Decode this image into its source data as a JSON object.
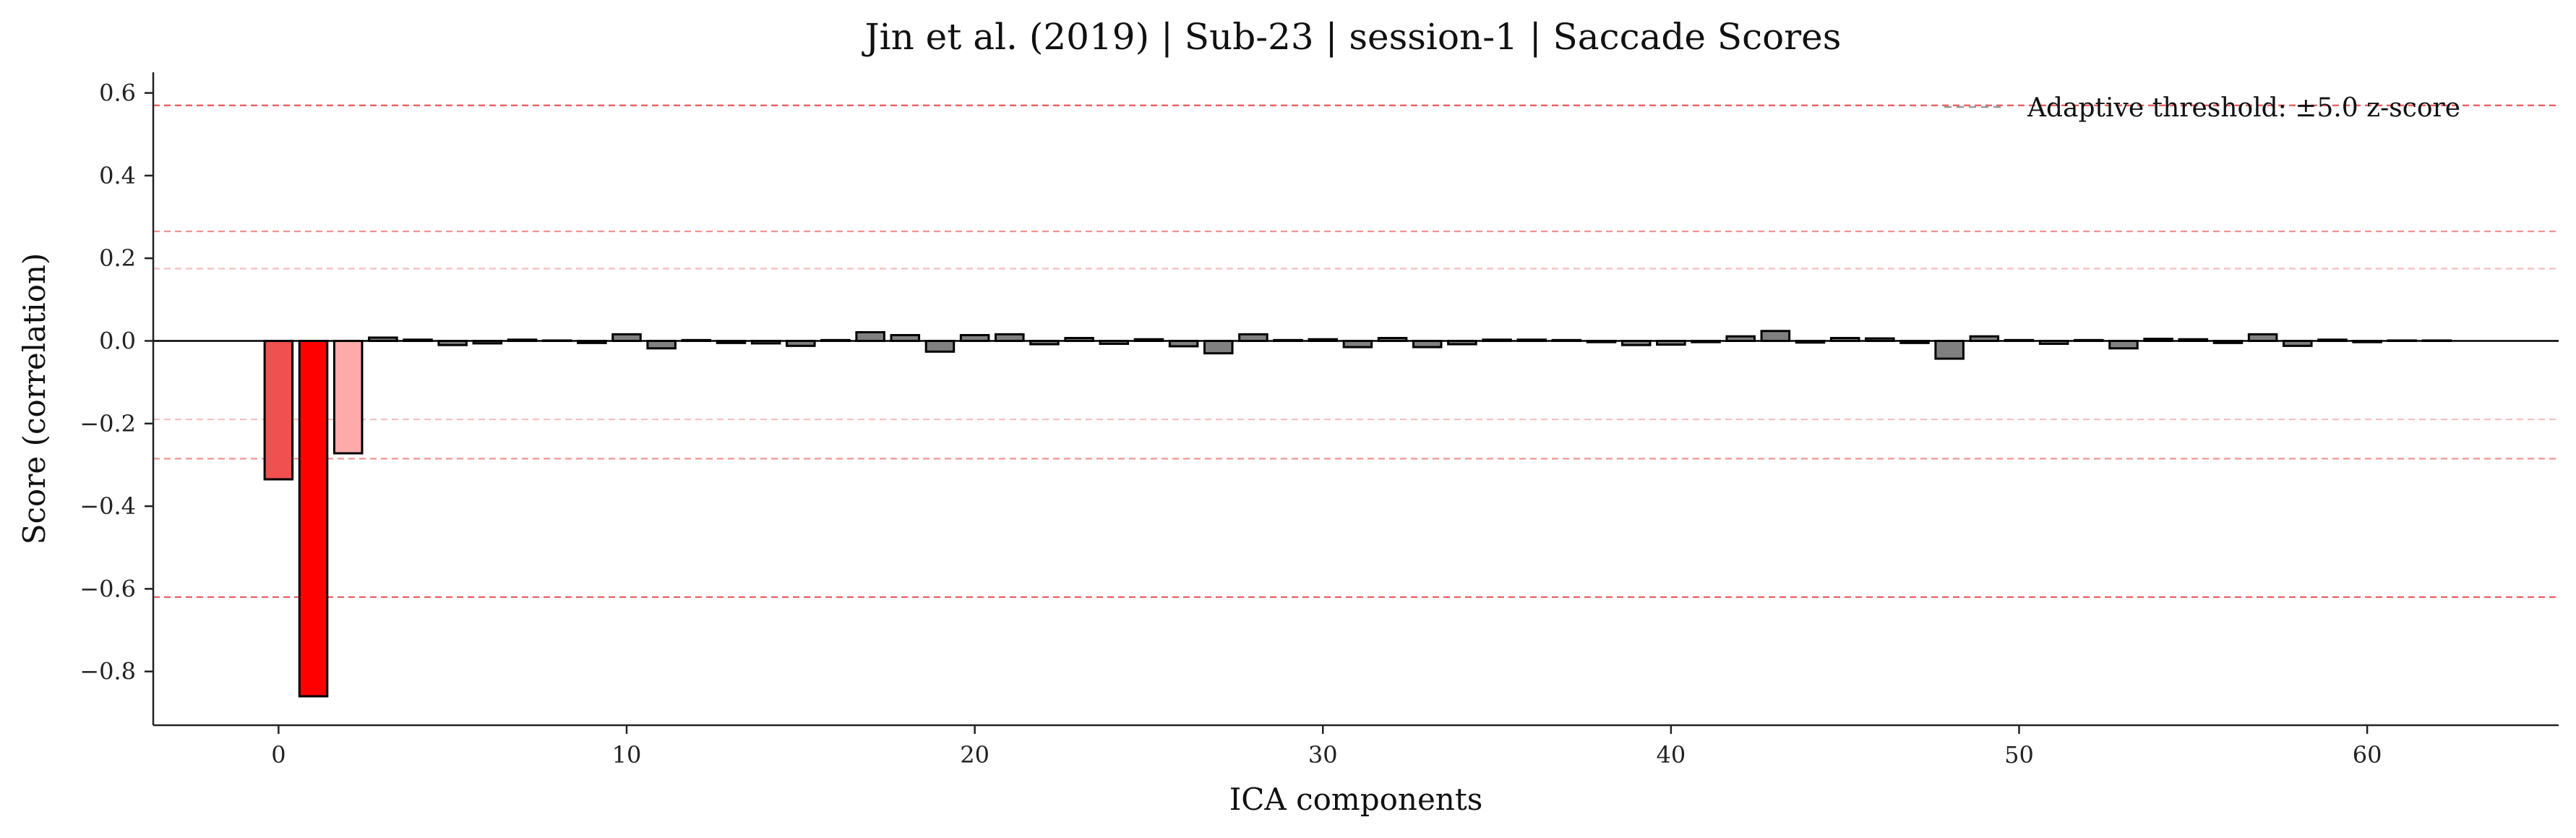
{
  "chart_data": {
    "type": "bar",
    "title": "Jin et al. (2019) | Sub-23 | session-1 | Saccade Scores",
    "xlabel": "ICA components",
    "ylabel": "Score (correlation)",
    "xlim": [
      -3.6,
      65.5
    ],
    "ylim": [
      -0.93,
      0.65
    ],
    "xticks": [
      0,
      10,
      20,
      30,
      40,
      50,
      60
    ],
    "xtick_labels": [
      "0",
      "10",
      "20",
      "30",
      "40",
      "50",
      "60"
    ],
    "yticks": [
      -0.8,
      -0.6,
      -0.4,
      -0.2,
      0.0,
      0.2,
      0.4,
      0.6
    ],
    "ytick_labels": [
      "−0.8",
      "−0.6",
      "−0.4",
      "−0.2",
      "0.0",
      "0.2",
      "0.4",
      "0.6"
    ],
    "x": [
      0,
      1,
      2,
      3,
      4,
      5,
      6,
      7,
      8,
      9,
      10,
      11,
      12,
      13,
      14,
      15,
      16,
      17,
      18,
      19,
      20,
      21,
      22,
      23,
      24,
      25,
      26,
      27,
      28,
      29,
      30,
      31,
      32,
      33,
      34,
      35,
      36,
      37,
      38,
      39,
      40,
      41,
      42,
      43,
      44,
      45,
      46,
      47,
      48,
      49,
      50,
      51,
      52,
      53,
      54,
      55,
      56,
      57,
      58,
      59,
      60,
      61,
      62
    ],
    "values": [
      -0.335,
      -0.86,
      -0.272,
      0.008,
      0.003,
      -0.01,
      -0.006,
      0.003,
      0.001,
      -0.005,
      0.016,
      -0.018,
      0.002,
      -0.005,
      -0.006,
      -0.012,
      0.002,
      0.021,
      0.014,
      -0.026,
      0.014,
      0.016,
      -0.008,
      0.007,
      -0.007,
      0.004,
      -0.013,
      -0.03,
      0.016,
      0.002,
      0.004,
      -0.015,
      0.007,
      -0.015,
      -0.008,
      0.003,
      0.003,
      0.002,
      -0.003,
      -0.01,
      -0.009,
      -0.003,
      0.011,
      0.024,
      -0.004,
      0.007,
      0.006,
      -0.005,
      -0.043,
      0.011,
      0.002,
      -0.007,
      0.002,
      -0.018,
      0.005,
      0.004,
      -0.005,
      0.016,
      -0.012,
      0.003,
      -0.003,
      0.001,
      0.001
    ],
    "flagged_colors": [
      "#f05050",
      "#ff0000",
      "#ffaaaa"
    ],
    "default_bar_color": "#808080",
    "threshold_lines": [
      {
        "y": 0.57,
        "color": "#e84545",
        "opacity": 0.9
      },
      {
        "y": -0.62,
        "color": "#e84545",
        "opacity": 0.9
      },
      {
        "y": 0.265,
        "color": "#f28080",
        "opacity": 0.85
      },
      {
        "y": -0.285,
        "color": "#f28080",
        "opacity": 0.85
      },
      {
        "y": 0.175,
        "color": "#f7b3b3",
        "opacity": 0.85
      },
      {
        "y": -0.19,
        "color": "#f7b3b3",
        "opacity": 0.85
      }
    ],
    "legend": {
      "entry": "Adaptive threshold: ±5.0 z-score",
      "line_color": "#999999",
      "placement": "top-right"
    },
    "grid": false
  }
}
